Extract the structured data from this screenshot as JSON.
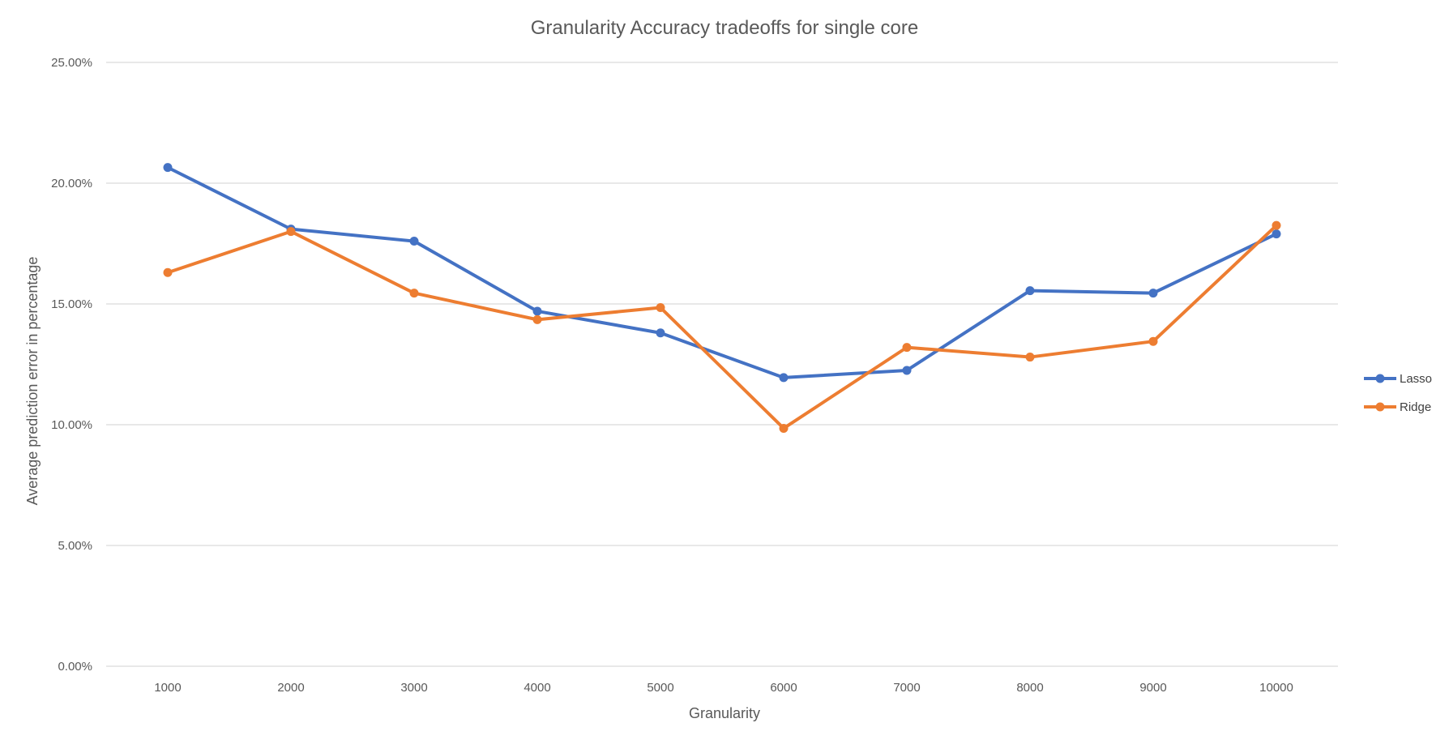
{
  "chart_data": {
    "type": "line",
    "title": "Granularity Accuracy tradeoffs for single core",
    "xlabel": "Granularity",
    "ylabel": "Average prediction error in percentage",
    "categories": [
      "1000",
      "2000",
      "3000",
      "4000",
      "5000",
      "6000",
      "7000",
      "8000",
      "9000",
      "10000"
    ],
    "y_ticks": [
      "0.00%",
      "5.00%",
      "10.00%",
      "15.00%",
      "20.00%",
      "25.00%"
    ],
    "ylim": [
      0,
      25
    ],
    "grid": "horizontal",
    "legend_position": "right",
    "series": [
      {
        "name": "Lasso",
        "color": "#4472c4",
        "values": [
          20.65,
          18.1,
          17.6,
          14.7,
          13.8,
          11.95,
          12.25,
          15.55,
          15.45,
          17.9
        ]
      },
      {
        "name": "Ridge",
        "color": "#ed7d31",
        "values": [
          16.3,
          18.0,
          15.45,
          14.35,
          14.85,
          9.85,
          13.2,
          12.8,
          13.45,
          18.25
        ]
      }
    ]
  }
}
